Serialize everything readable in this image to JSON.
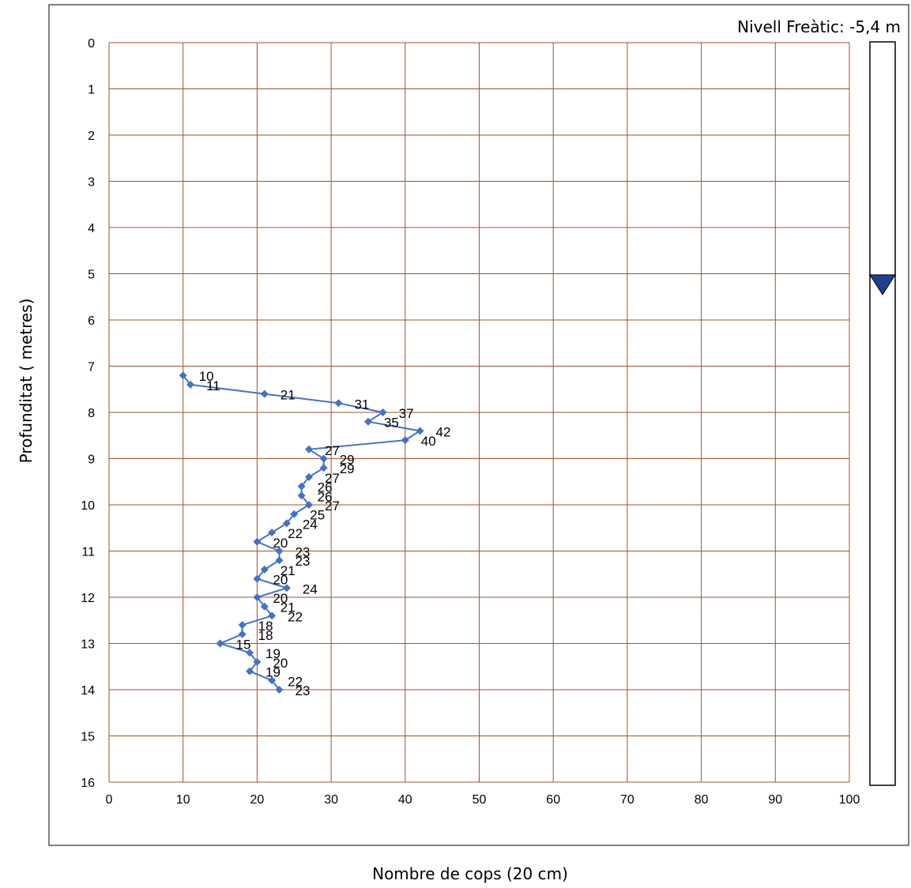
{
  "chart_data": {
    "type": "line",
    "xlabel": "Nombre de cops (20 cm)",
    "ylabel": "Profunditat ( metres)",
    "xlim": [
      0,
      100
    ],
    "ylim": [
      0,
      16
    ],
    "y_reversed": true,
    "x_ticks": [
      "0",
      "10",
      "20",
      "30",
      "40",
      "50",
      "60",
      "70",
      "80",
      "90",
      "100"
    ],
    "y_ticks": [
      "0",
      "1",
      "2",
      "3",
      "4",
      "5",
      "6",
      "7",
      "8",
      "9",
      "10",
      "11",
      "12",
      "13",
      "14",
      "15",
      "16"
    ],
    "grid": true,
    "legend": "none",
    "colors": {
      "series": "#4472c4",
      "gridline": "#a0522d",
      "indicator": "#1f3f8f"
    },
    "series": [
      {
        "marker": "diamond",
        "points": [
          {
            "depth": 7.2,
            "blows": 10
          },
          {
            "depth": 7.4,
            "blows": 11
          },
          {
            "depth": 7.6,
            "blows": 21
          },
          {
            "depth": 7.8,
            "blows": 31
          },
          {
            "depth": 8.0,
            "blows": 37
          },
          {
            "depth": 8.2,
            "blows": 35
          },
          {
            "depth": 8.4,
            "blows": 42
          },
          {
            "depth": 8.6,
            "blows": 40
          },
          {
            "depth": 8.8,
            "blows": 27
          },
          {
            "depth": 9.0,
            "blows": 29
          },
          {
            "depth": 9.2,
            "blows": 29
          },
          {
            "depth": 9.4,
            "blows": 27
          },
          {
            "depth": 9.6,
            "blows": 26
          },
          {
            "depth": 9.8,
            "blows": 26
          },
          {
            "depth": 10.0,
            "blows": 27
          },
          {
            "depth": 10.2,
            "blows": 25
          },
          {
            "depth": 10.4,
            "blows": 24
          },
          {
            "depth": 10.6,
            "blows": 22
          },
          {
            "depth": 10.8,
            "blows": 20
          },
          {
            "depth": 11.0,
            "blows": 23
          },
          {
            "depth": 11.2,
            "blows": 23
          },
          {
            "depth": 11.4,
            "blows": 21
          },
          {
            "depth": 11.6,
            "blows": 20
          },
          {
            "depth": 11.8,
            "blows": 24
          },
          {
            "depth": 12.0,
            "blows": 20
          },
          {
            "depth": 12.2,
            "blows": 21
          },
          {
            "depth": 12.4,
            "blows": 22
          },
          {
            "depth": 12.6,
            "blows": 18
          },
          {
            "depth": 12.8,
            "blows": 18
          },
          {
            "depth": 13.0,
            "blows": 15
          },
          {
            "depth": 13.2,
            "blows": 19
          },
          {
            "depth": 13.4,
            "blows": 20
          },
          {
            "depth": 13.6,
            "blows": 19
          },
          {
            "depth": 13.8,
            "blows": 22
          },
          {
            "depth": 14.0,
            "blows": 23
          }
        ]
      }
    ],
    "water_table": {
      "label": "Nivell Freàtic: -5,4 m",
      "depth": 5.4
    }
  }
}
